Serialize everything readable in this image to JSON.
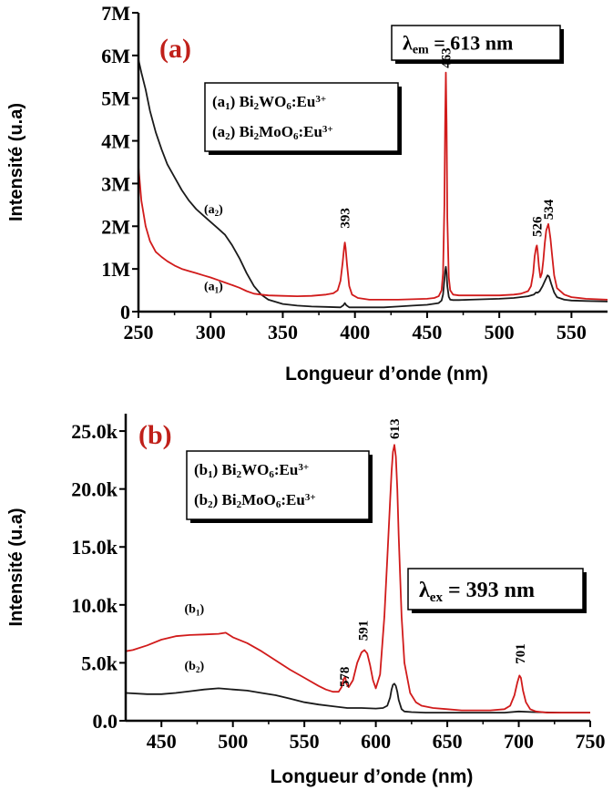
{
  "chart_data": [
    {
      "panel": "a",
      "type": "line",
      "panel_label": "(a)",
      "xlabel": "Longueur d’onde (nm)",
      "ylabel": "Intensité (u.a)",
      "xlim": [
        250,
        575
      ],
      "ylim": [
        0,
        7
      ],
      "xticks": [
        250,
        300,
        350,
        400,
        450,
        500,
        550
      ],
      "xtick_labels": [
        "250",
        "300",
        "350",
        "400",
        "450",
        "500",
        "550"
      ],
      "yticks": [
        0,
        1,
        2,
        3,
        4,
        5,
        6,
        7
      ],
      "ytick_labels": [
        "0",
        "1M",
        "2M",
        "3M",
        "4M",
        "5M",
        "6M",
        "7M"
      ],
      "condition": {
        "symbol": "λ",
        "subscript": "em",
        "text": " = 613 nm"
      },
      "legend": [
        {
          "tag": "a",
          "sub": "1",
          "formula": [
            [
              "Bi",
              ""
            ],
            [
              "2",
              "sub"
            ],
            [
              "WO",
              ""
            ],
            [
              "6",
              "sub"
            ],
            [
              ":Eu",
              ""
            ],
            [
              "3+",
              "sup"
            ]
          ]
        },
        {
          "tag": "a",
          "sub": "2",
          "formula": [
            [
              "Bi",
              ""
            ],
            [
              "2",
              "sub"
            ],
            [
              "MoO",
              ""
            ],
            [
              "6",
              "sub"
            ],
            [
              ":Eu",
              ""
            ],
            [
              "3+",
              "sup"
            ]
          ]
        }
      ],
      "curve_labels": [
        {
          "tag": "a",
          "sub": "2",
          "x": 302,
          "y": 2.3
        },
        {
          "tag": "a",
          "sub": "1",
          "x": 302,
          "y": 0.5
        }
      ],
      "peak_labels": [
        {
          "text": "393",
          "x": 393,
          "y": 1.95
        },
        {
          "text": "463",
          "x": 463,
          "y": 5.7
        },
        {
          "text": "526",
          "x": 526,
          "y": 1.75
        },
        {
          "text": "534",
          "x": 534,
          "y": 2.15
        }
      ],
      "series": [
        {
          "name": "Bi2WO6:Eu3+",
          "color": "#d11b1b",
          "x": [
            250,
            252,
            255,
            258,
            262,
            266,
            270,
            275,
            280,
            285,
            290,
            295,
            300,
            305,
            310,
            315,
            320,
            325,
            330,
            335,
            340,
            350,
            360,
            370,
            380,
            385,
            388,
            390,
            391.5,
            392.5,
            393,
            393.5,
            394.5,
            396,
            398,
            402,
            410,
            420,
            430,
            440,
            450,
            455,
            458,
            460,
            461,
            462,
            462.5,
            463,
            463.5,
            464,
            465,
            466,
            468,
            472,
            480,
            490,
            500,
            510,
            515,
            520,
            522,
            523.5,
            524.5,
            525.5,
            526,
            526.5,
            527.5,
            528.5,
            529.5,
            530.5,
            531.5,
            532.5,
            533.5,
            534,
            534.5,
            535.5,
            536.5,
            538,
            540,
            545,
            550,
            560,
            575
          ],
          "y": [
            3.4,
            2.6,
            2.0,
            1.65,
            1.4,
            1.28,
            1.18,
            1.08,
            1.0,
            0.95,
            0.9,
            0.85,
            0.8,
            0.74,
            0.68,
            0.62,
            0.56,
            0.48,
            0.42,
            0.4,
            0.38,
            0.37,
            0.36,
            0.37,
            0.4,
            0.43,
            0.5,
            0.72,
            1.15,
            1.5,
            1.62,
            1.5,
            1.1,
            0.6,
            0.4,
            0.32,
            0.28,
            0.28,
            0.28,
            0.29,
            0.3,
            0.32,
            0.36,
            0.5,
            0.9,
            2.5,
            4.4,
            5.6,
            4.4,
            2.2,
            0.8,
            0.5,
            0.4,
            0.38,
            0.38,
            0.38,
            0.38,
            0.4,
            0.42,
            0.48,
            0.6,
            0.9,
            1.3,
            1.5,
            1.55,
            1.45,
            1.05,
            0.8,
            0.9,
            1.2,
            1.6,
            1.9,
            2.0,
            2.05,
            1.95,
            1.7,
            1.35,
            0.85,
            0.55,
            0.4,
            0.34,
            0.3,
            0.28
          ]
        },
        {
          "name": "Bi2MoO6:Eu3+",
          "color": "#1a1a1a",
          "x": [
            250,
            252,
            255,
            258,
            262,
            266,
            270,
            275,
            280,
            285,
            290,
            295,
            300,
            305,
            310,
            315,
            320,
            325,
            330,
            335,
            340,
            350,
            360,
            370,
            380,
            390,
            392,
            393,
            394,
            396,
            400,
            410,
            420,
            430,
            440,
            450,
            458,
            460,
            461,
            462,
            462.5,
            463,
            463.5,
            464,
            465,
            466,
            468,
            472,
            480,
            490,
            500,
            510,
            520,
            524,
            525.5,
            526.5,
            528,
            530,
            532,
            533.5,
            534.5,
            536,
            538,
            540,
            545,
            550,
            560,
            575
          ],
          "y": [
            5.9,
            5.6,
            5.2,
            4.7,
            4.2,
            3.8,
            3.45,
            3.15,
            2.85,
            2.6,
            2.4,
            2.25,
            2.1,
            1.95,
            1.8,
            1.55,
            1.25,
            0.9,
            0.6,
            0.4,
            0.28,
            0.18,
            0.14,
            0.12,
            0.11,
            0.1,
            0.15,
            0.2,
            0.15,
            0.1,
            0.1,
            0.1,
            0.1,
            0.12,
            0.14,
            0.16,
            0.2,
            0.26,
            0.4,
            0.75,
            0.95,
            1.05,
            0.9,
            0.6,
            0.35,
            0.28,
            0.27,
            0.27,
            0.28,
            0.29,
            0.3,
            0.32,
            0.36,
            0.4,
            0.45,
            0.44,
            0.48,
            0.6,
            0.75,
            0.85,
            0.82,
            0.65,
            0.45,
            0.34,
            0.28,
            0.26,
            0.25,
            0.24
          ]
        }
      ]
    },
    {
      "panel": "b",
      "type": "line",
      "panel_label": "(b)",
      "xlabel": "Longueur d’onde (nm)",
      "ylabel": "Intensité (u.a)",
      "xlim": [
        425,
        750
      ],
      "ylim": [
        0,
        26.5
      ],
      "xticks": [
        450,
        500,
        550,
        600,
        650,
        700,
        750
      ],
      "xtick_labels": [
        "450",
        "500",
        "550",
        "600",
        "650",
        "700",
        "750"
      ],
      "yticks": [
        0,
        5,
        10,
        15,
        20,
        25
      ],
      "ytick_labels": [
        "0.0",
        "5.0k",
        "10.0k",
        "15.0k",
        "20.0k",
        "25.0k"
      ],
      "condition": {
        "symbol": "λ",
        "subscript": "ex",
        "text": " = 393 nm"
      },
      "legend": [
        {
          "tag": "b",
          "sub": "1",
          "formula": [
            [
              "Bi",
              ""
            ],
            [
              "2",
              "sub"
            ],
            [
              "WO",
              ""
            ],
            [
              "6",
              "sub"
            ],
            [
              ":Eu",
              ""
            ],
            [
              "3+",
              "sup"
            ]
          ]
        },
        {
          "tag": "b",
          "sub": "2",
          "formula": [
            [
              "Bi",
              ""
            ],
            [
              "2",
              "sub"
            ],
            [
              "MoO",
              ""
            ],
            [
              "6",
              "sub"
            ],
            [
              ":Eu",
              ""
            ],
            [
              "3+",
              "sup"
            ]
          ]
        }
      ],
      "curve_labels": [
        {
          "tag": "b",
          "sub": "1",
          "x": 473,
          "y": 9.3
        },
        {
          "tag": "b",
          "sub": "2",
          "x": 473,
          "y": 4.4
        }
      ],
      "peak_labels": [
        {
          "text": "578",
          "x": 578,
          "y": 2.9
        },
        {
          "text": "591",
          "x": 591,
          "y": 6.9
        },
        {
          "text": "613",
          "x": 613,
          "y": 24.3
        },
        {
          "text": "701",
          "x": 701,
          "y": 4.9
        }
      ],
      "series": [
        {
          "name": "Bi2WO6:Eu3+",
          "color": "#d11b1b",
          "x": [
            425,
            430,
            440,
            450,
            460,
            470,
            480,
            490,
            495,
            500,
            510,
            520,
            530,
            540,
            550,
            560,
            565,
            570,
            574,
            576,
            577.5,
            578.5,
            579.5,
            581,
            584,
            587,
            590,
            592,
            594,
            596,
            598,
            600,
            603,
            606,
            608,
            610,
            611,
            612,
            613,
            614,
            615,
            616,
            618,
            620,
            624,
            628,
            632,
            640,
            650,
            660,
            670,
            680,
            690,
            694,
            697,
            699,
            700.5,
            701.5,
            703,
            705,
            708,
            712,
            720,
            730,
            740,
            750
          ],
          "y": [
            6.0,
            6.1,
            6.5,
            7.0,
            7.3,
            7.4,
            7.45,
            7.5,
            7.6,
            7.2,
            6.7,
            6.0,
            5.2,
            4.4,
            3.7,
            3.0,
            2.7,
            2.5,
            2.5,
            2.9,
            3.6,
            3.8,
            3.2,
            2.9,
            3.5,
            5.0,
            5.9,
            6.1,
            5.8,
            4.8,
            3.5,
            2.8,
            4.0,
            9.0,
            14.0,
            19.0,
            21.5,
            23.2,
            23.8,
            22.8,
            20.0,
            16.0,
            9.0,
            5.0,
            2.4,
            1.6,
            1.3,
            1.1,
            1.0,
            0.9,
            0.9,
            0.9,
            1.0,
            1.3,
            2.2,
            3.3,
            3.9,
            3.7,
            2.6,
            1.6,
            1.0,
            0.8,
            0.7,
            0.7,
            0.7,
            0.7
          ]
        },
        {
          "name": "Bi2MoO6:Eu3+",
          "color": "#1a1a1a",
          "x": [
            425,
            440,
            450,
            460,
            470,
            480,
            490,
            500,
            510,
            520,
            530,
            540,
            550,
            560,
            570,
            580,
            590,
            600,
            605,
            608,
            610,
            611,
            612,
            613,
            614,
            615,
            616,
            618,
            620,
            625,
            635,
            650,
            670,
            690,
            700,
            710,
            730,
            750
          ],
          "y": [
            2.4,
            2.3,
            2.3,
            2.4,
            2.55,
            2.7,
            2.8,
            2.7,
            2.6,
            2.4,
            2.2,
            1.9,
            1.6,
            1.4,
            1.25,
            1.1,
            1.1,
            1.05,
            1.1,
            1.3,
            2.0,
            2.7,
            3.1,
            3.2,
            3.0,
            2.5,
            1.8,
            1.0,
            0.8,
            0.75,
            0.7,
            0.7,
            0.7,
            0.7,
            0.8,
            0.75,
            0.7,
            0.7
          ]
        }
      ]
    }
  ]
}
